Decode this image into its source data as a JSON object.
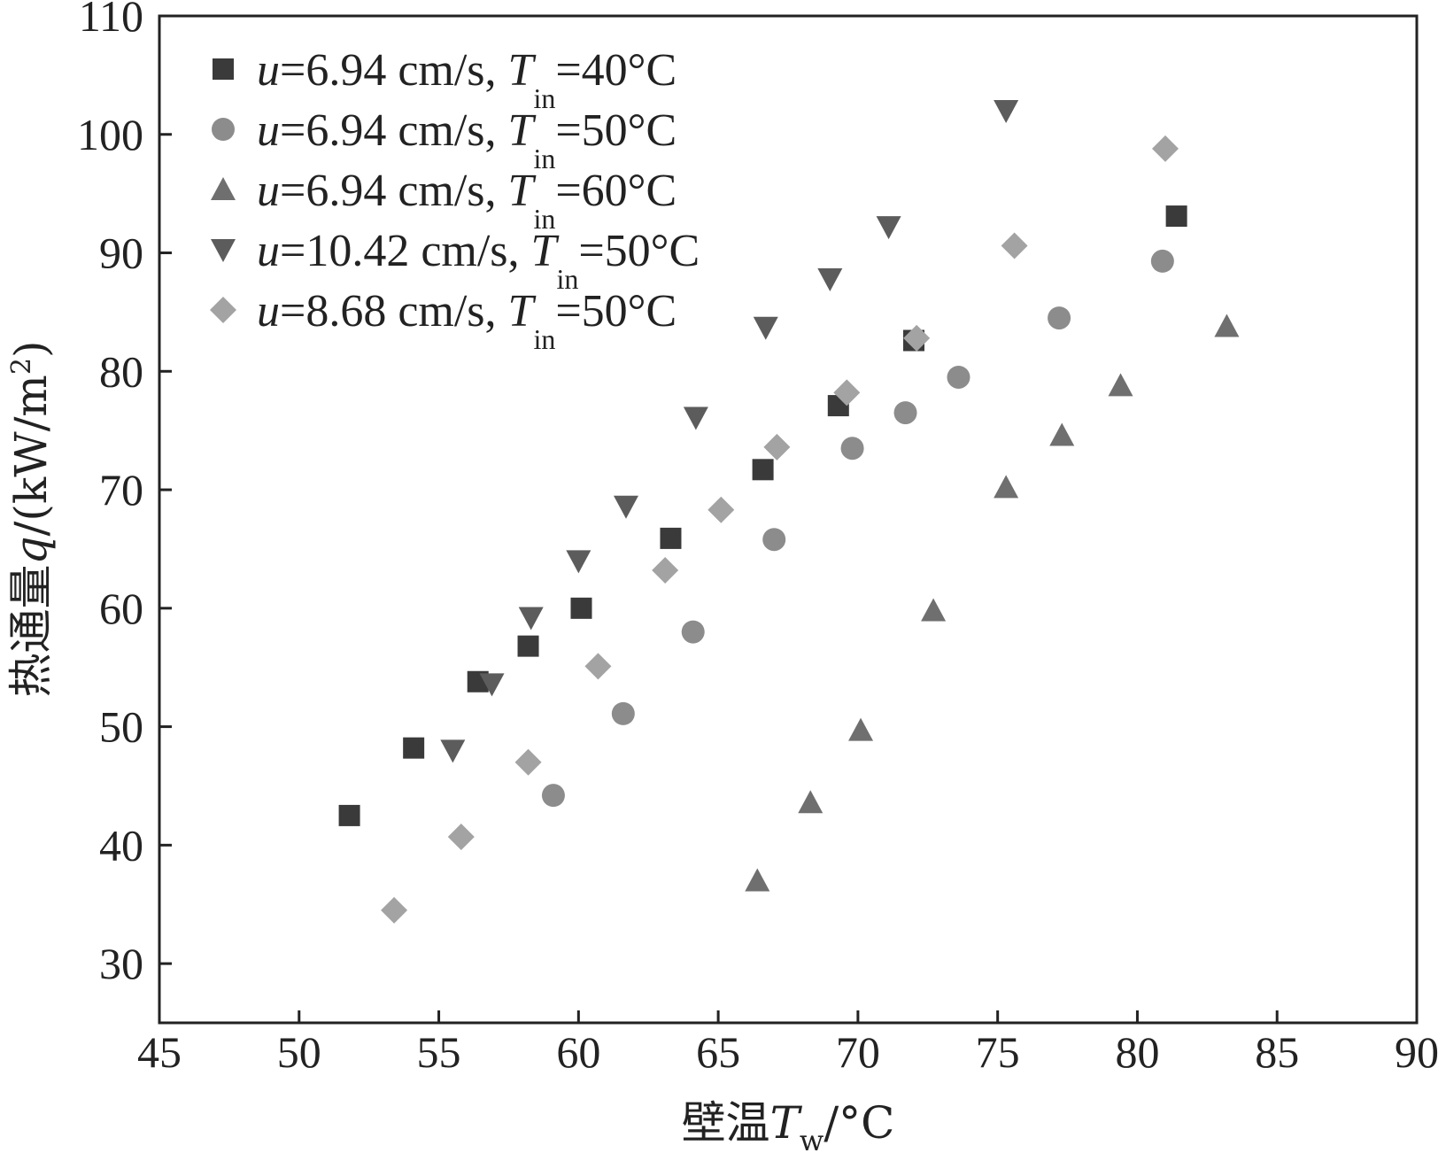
{
  "chart_data": {
    "type": "scatter",
    "xlabel": {
      "main": "壁温",
      "var": "T",
      "sub": "w",
      "unit": "/°C"
    },
    "ylabel": {
      "main": "热通量",
      "var": "q",
      "unit": "/(kW/m",
      "sup": "2",
      "close": ")"
    },
    "xlim": [
      45,
      90
    ],
    "ylim": [
      25,
      110
    ],
    "xticks": [
      45,
      50,
      55,
      60,
      65,
      70,
      75,
      80,
      85,
      90
    ],
    "yticks": [
      30,
      40,
      50,
      60,
      70,
      80,
      90,
      100,
      110
    ],
    "grid": false,
    "legend_position": "top-left",
    "series": [
      {
        "name": "u=6.94 cm/s, Tin=40°C",
        "legend": {
          "u": "u",
          "rest": "=6.94 cm/s, ",
          "T": "T",
          "sub": "in",
          "value": "=40°C"
        },
        "marker": "square",
        "color": "#3a3a3a",
        "x": [
          51.8,
          54.1,
          56.4,
          58.2,
          60.1,
          63.3,
          66.6,
          69.3,
          72.0,
          81.4
        ],
        "y": [
          42.5,
          48.2,
          53.8,
          56.8,
          60.0,
          65.9,
          71.7,
          77.1,
          82.6,
          93.1
        ]
      },
      {
        "name": "u=6.94 cm/s, Tin=50°C",
        "legend": {
          "u": "u",
          "rest": "=6.94 cm/s, ",
          "T": "T",
          "sub": "in",
          "value": "=50°C"
        },
        "marker": "circle",
        "color": "#8c8c8c",
        "x": [
          59.1,
          61.6,
          64.1,
          67.0,
          69.8,
          71.7,
          73.6,
          77.2,
          80.9
        ],
        "y": [
          44.2,
          51.1,
          58.0,
          65.8,
          73.5,
          76.5,
          79.5,
          84.5,
          89.3
        ]
      },
      {
        "name": "u=6.94 cm/s, Tin=60°C",
        "legend": {
          "u": "u",
          "rest": "=6.94 cm/s, ",
          "T": "T",
          "sub": "in",
          "value": "=60°C"
        },
        "marker": "triangle-up",
        "color": "#6f6f6f",
        "x": [
          66.4,
          68.3,
          70.1,
          72.7,
          75.3,
          77.3,
          79.4,
          83.2
        ],
        "y": [
          37.0,
          43.6,
          49.7,
          59.8,
          70.2,
          74.6,
          78.8,
          83.8
        ]
      },
      {
        "name": "u=10.42 cm/s, Tin=50°C",
        "legend": {
          "u": "u",
          "rest": "=10.42 cm/s, ",
          "T": "T",
          "sub": "in",
          "value": "=50°C"
        },
        "marker": "triangle-down",
        "color": "#5c5c5c",
        "x": [
          55.5,
          56.9,
          58.3,
          60.0,
          61.7,
          64.2,
          66.7,
          69.0,
          71.1,
          75.3
        ],
        "y": [
          48.0,
          53.6,
          59.2,
          64.0,
          68.6,
          76.1,
          83.7,
          87.8,
          92.2,
          102.0
        ]
      },
      {
        "name": "u=8.68 cm/s, Tin=50°C",
        "legend": {
          "u": "u",
          "rest": "=8.68 cm/s, ",
          "T": "T",
          "sub": "in",
          "value": "=50°C"
        },
        "marker": "diamond",
        "color": "#a3a3a3",
        "x": [
          53.4,
          55.8,
          58.2,
          60.7,
          63.1,
          65.1,
          67.1,
          69.6,
          72.1,
          75.6,
          81.0
        ],
        "y": [
          34.5,
          40.7,
          47.0,
          55.1,
          63.2,
          68.3,
          73.6,
          78.2,
          82.8,
          90.6,
          98.8
        ]
      }
    ]
  }
}
